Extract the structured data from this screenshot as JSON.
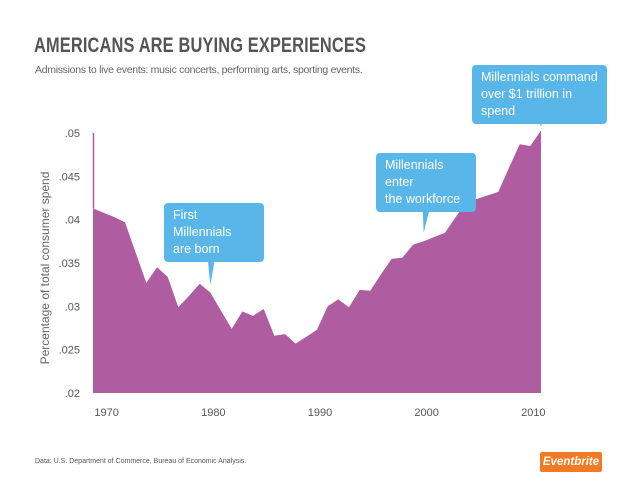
{
  "header": {
    "title": "AMERICANS ARE BUYING EXPERIENCES",
    "subtitle": "Admissions to live events: music concerts, performing arts, sporting events."
  },
  "chart_data": {
    "type": "area",
    "title": "AMERICANS ARE BUYING EXPERIENCES",
    "xlabel": "",
    "ylabel": "Percentage of total consumer spend",
    "x": [
      1969,
      1970,
      1971,
      1972,
      1973,
      1974,
      1975,
      1976,
      1977,
      1978,
      1979,
      1980,
      1981,
      1982,
      1983,
      1984,
      1985,
      1986,
      1987,
      1988,
      1989,
      1990,
      1991,
      1992,
      1993,
      1994,
      1995,
      1996,
      1997,
      1998,
      1999,
      2000,
      2001,
      2002,
      2003,
      2004,
      2005,
      2006,
      2007,
      2008,
      2009,
      2010,
      2011
    ],
    "values": [
      0.0413,
      0.0408,
      0.0403,
      0.0397,
      0.0362,
      0.0327,
      0.0345,
      0.0334,
      0.0299,
      0.0312,
      0.0326,
      0.0316,
      0.0295,
      0.0274,
      0.0294,
      0.0289,
      0.0297,
      0.0266,
      0.0268,
      0.0257,
      0.0265,
      0.0273,
      0.03,
      0.0308,
      0.0299,
      0.0319,
      0.0318,
      0.0337,
      0.0355,
      0.0356,
      0.0371,
      0.0375,
      0.038,
      0.0385,
      0.0403,
      0.042,
      0.0424,
      0.0428,
      0.0432,
      0.046,
      0.0487,
      0.0485,
      0.0503
    ],
    "xlim": [
      1969,
      2011
    ],
    "ylim": [
      0.02,
      0.05
    ],
    "x_ticks": [
      1970,
      1980,
      1990,
      2000,
      2010
    ],
    "x_tick_labels": [
      "1970",
      "1980",
      "1990",
      "2000",
      "2010"
    ],
    "y_ticks": [
      0.05,
      0.045,
      0.04,
      0.035,
      0.03,
      0.025,
      0.02
    ],
    "y_tick_labels": [
      ".05",
      ".045",
      ".04",
      ".035",
      ".03",
      ".025",
      ".02"
    ],
    "grid": false,
    "color": "#b05ca0",
    "annotations": [
      {
        "text_line1": "First Millennials",
        "text_line2": "are born",
        "x": 1980,
        "y": 0.0325
      },
      {
        "text_line1": "Millennials enter",
        "text_line2": "the workforce",
        "x": 2000,
        "y": 0.0385
      },
      {
        "text_line1": "Millennials command",
        "text_line2": "over $1 trillion in spend",
        "x": 2011,
        "y": 0.0507
      }
    ]
  },
  "callout_color": "#58b7e8",
  "footer": {
    "source": "Data: U.S. Department of Commerce, Bureau of Economic Analysis.",
    "logo": "Eventbrite",
    "logo_color": "#f27a24"
  }
}
